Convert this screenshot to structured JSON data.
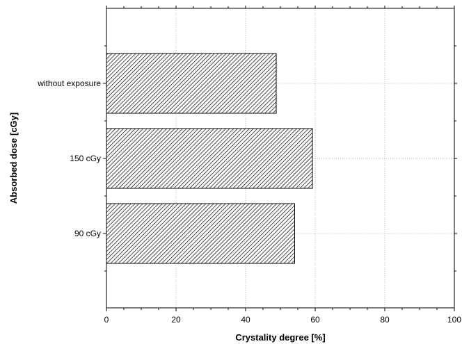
{
  "chart_data": {
    "type": "bar",
    "orientation": "horizontal",
    "categories": [
      "without exposure",
      "150 cGy",
      "90 cGy"
    ],
    "values": [
      48.8,
      59.2,
      54.1
    ],
    "xlabel": "Crystality degree [%]",
    "ylabel": "Absorbed dose [cGy]",
    "xlim": [
      0,
      100
    ],
    "xticks": [
      "0",
      "20",
      "40",
      "60",
      "80",
      "100"
    ],
    "grid": true,
    "bar_fill": "hatched",
    "colors": {
      "bar_stroke": "#000000",
      "hatch": "#000000",
      "grid": "#b0b0b0"
    }
  }
}
